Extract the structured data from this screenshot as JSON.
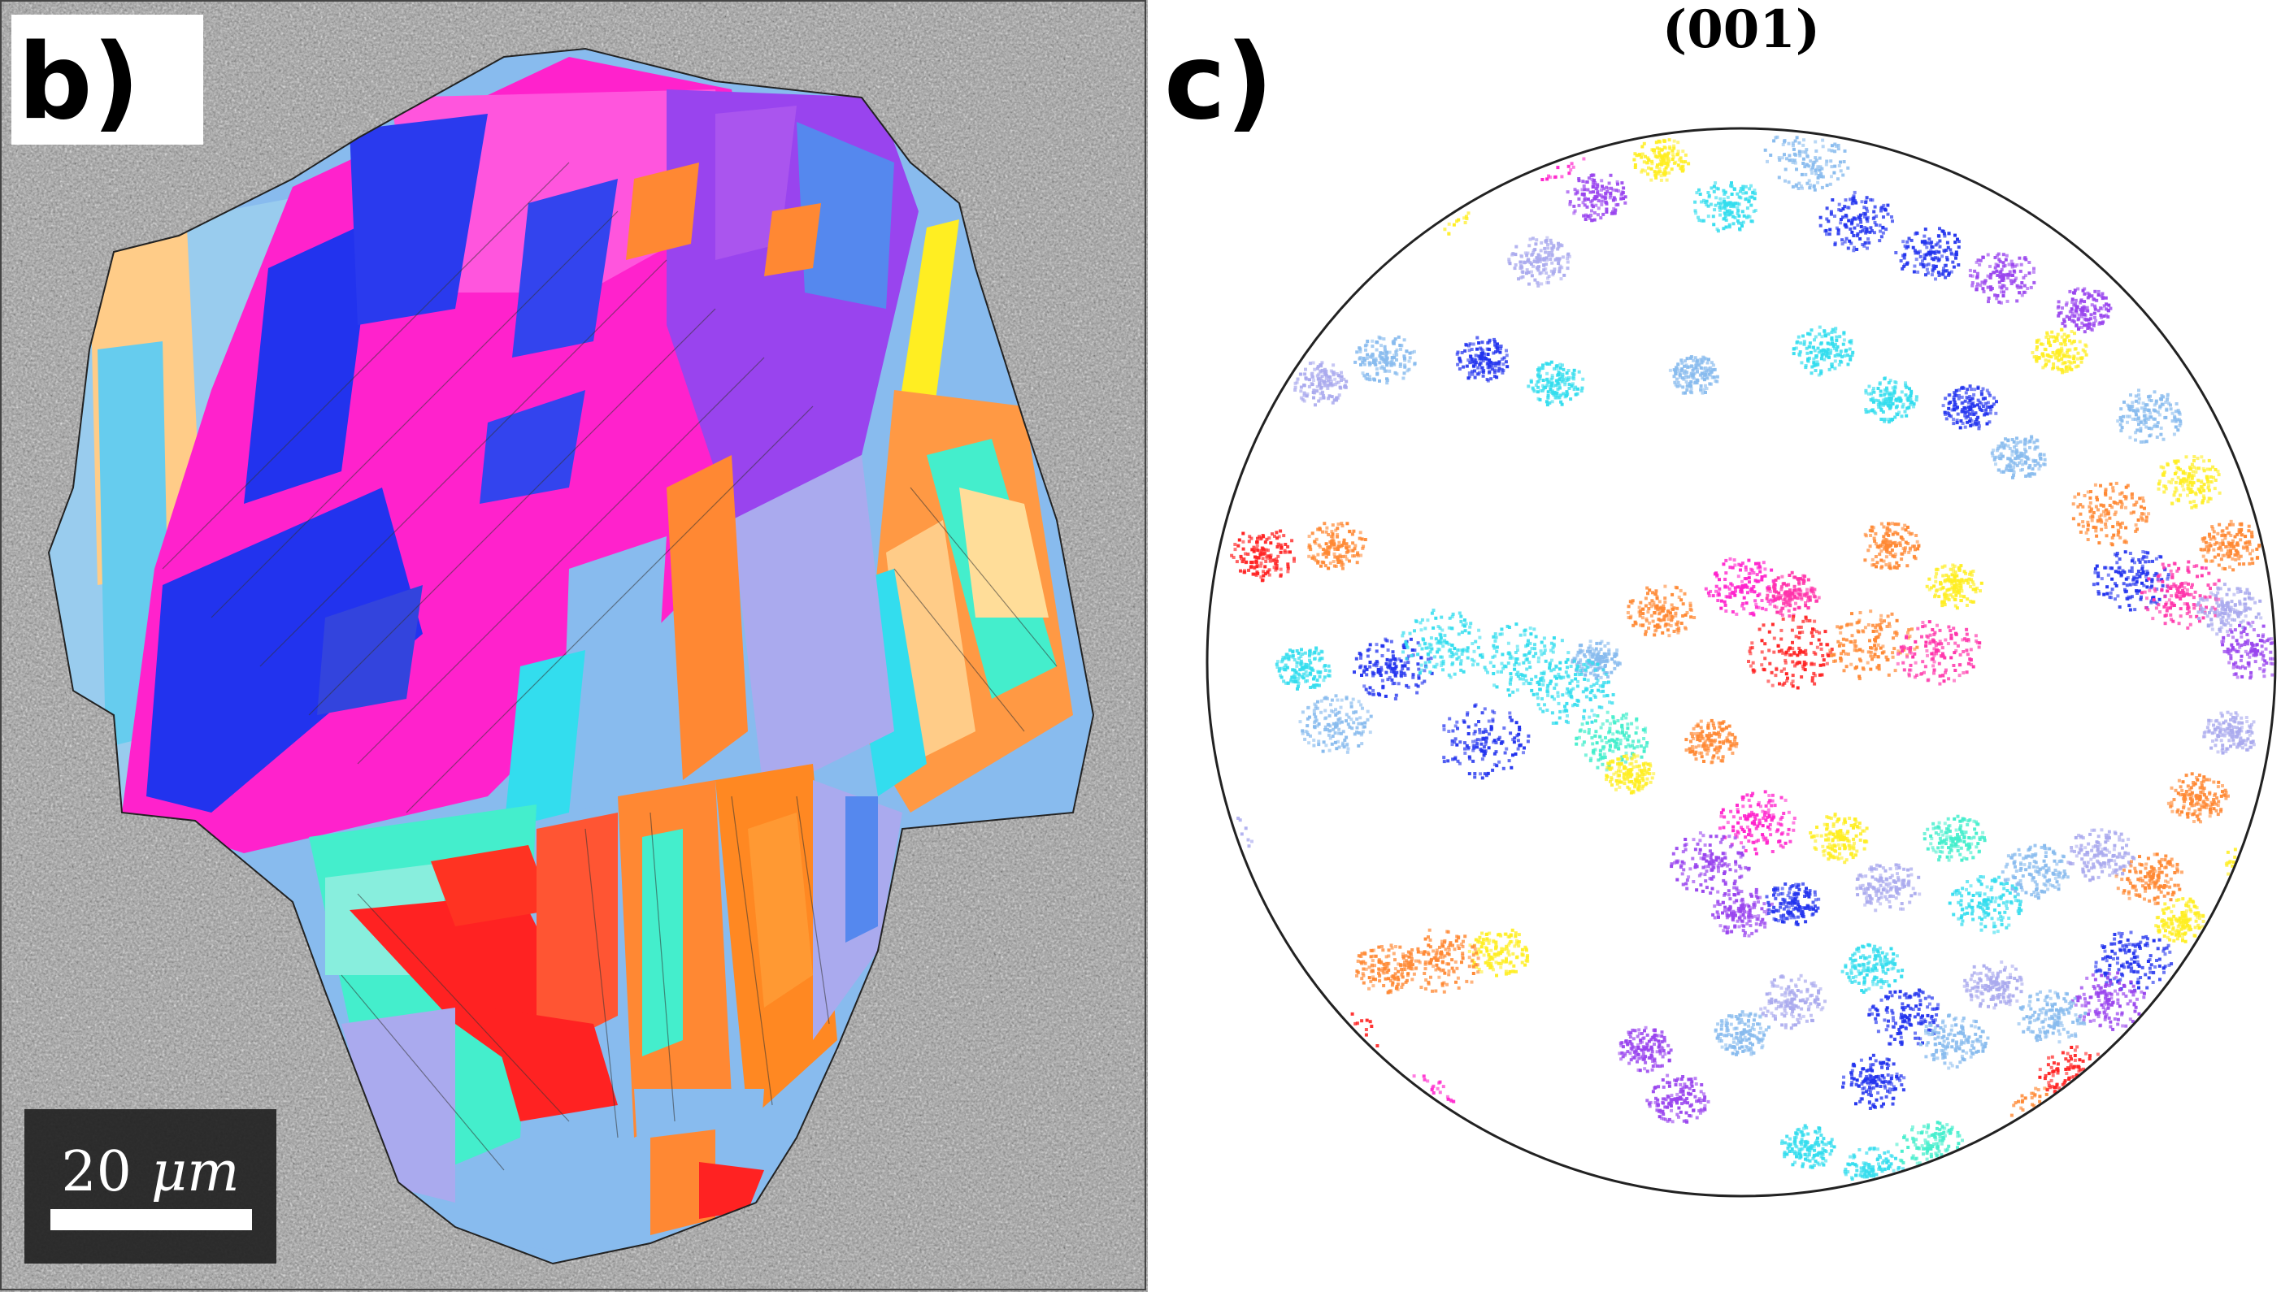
{
  "figure": {
    "panels": [
      {
        "label": "b)",
        "scale_bar": {
          "value": "20",
          "unit": "μm"
        }
      },
      {
        "label": "c)",
        "title": "(001)"
      }
    ]
  },
  "colors": {
    "magenta": "#ff22cc",
    "hot_pink": "#ff33aa",
    "blue": "#2233ee",
    "violet": "#9944ee",
    "lavender": "#aaaaee",
    "light_blue": "#88bbee",
    "cyan": "#33ddee",
    "aqua": "#44eecc",
    "orange": "#ff8833",
    "red": "#ff2222",
    "yellow": "#ffee22",
    "peach": "#ffcc88",
    "background_gray": "#9a9a9a"
  }
}
